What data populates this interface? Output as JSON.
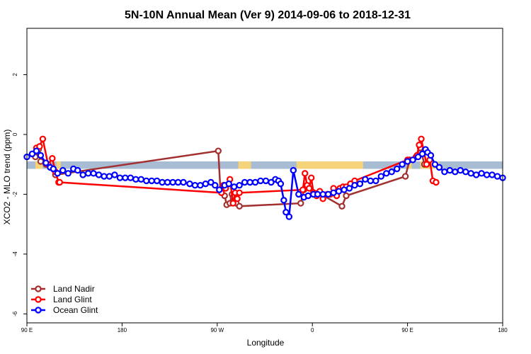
{
  "chart_data": {
    "type": "line",
    "title": "5N-10N Annual Mean (Ver 9)   2014-09-06 to 2018-12-31",
    "xlabel": "Longitude",
    "ylabel": "XCO2 - MLO trend (ppm)",
    "x_ticks": [
      {
        "value": -90,
        "label": "90 E"
      },
      {
        "value": 0,
        "label": "180"
      },
      {
        "value": 90,
        "label": "90 W"
      },
      {
        "value": 180,
        "label": "0"
      },
      {
        "value": 270,
        "label": "90 E"
      },
      {
        "value": 360,
        "label": "180"
      }
    ],
    "y_ticks": [
      {
        "value": 2,
        "label": "2"
      },
      {
        "value": 0,
        "label": "0"
      },
      {
        "value": -2,
        "label": "-2"
      },
      {
        "value": -4,
        "label": "-4"
      },
      {
        "value": -6,
        "label": "-6"
      }
    ],
    "xlim": [
      -90,
      360
    ],
    "ylim": [
      -6.3,
      3.55
    ],
    "grid": false,
    "legend_position": "bottom-left",
    "land_mask_band": {
      "ymin": -1.15,
      "ymax": -0.9,
      "ocean_color": "#a8bcd4",
      "land_color": "#f5d37a",
      "land_segments": [
        [
          -82,
          -75
        ],
        [
          -62,
          -58
        ],
        [
          110,
          122
        ],
        [
          165,
          228
        ],
        [
          270,
          274
        ],
        [
          282,
          300
        ]
      ]
    },
    "series": [
      {
        "name": "Land Nadir",
        "color": "#a23030",
        "x": [
          -82,
          -79,
          -77,
          -72,
          -63,
          91,
          93,
          95,
          97,
          99,
          102,
          104,
          105,
          108,
          111,
          169,
          172,
          176,
          208,
          212,
          268,
          272,
          278,
          282,
          286
        ],
        "y": [
          -0.75,
          -0.5,
          -0.9,
          -1.0,
          -1.35,
          -0.55,
          -1.85,
          -1.75,
          -2.05,
          -2.35,
          -2.3,
          -2.0,
          -2.1,
          -2.3,
          -2.4,
          -2.3,
          -1.85,
          -1.75,
          -2.4,
          -2.05,
          -1.4,
          -0.85,
          -0.75,
          -0.45,
          -1.0
        ]
      },
      {
        "name": "Land Glint",
        "color": "#ff0000",
        "x": [
          -81,
          -78,
          -75,
          -70,
          -66,
          -63,
          -60,
          -59,
          94,
          96,
          98,
          102,
          105,
          107,
          109,
          111,
          171,
          173,
          175,
          177,
          179,
          181,
          184,
          187,
          190,
          194,
          197,
          200,
          203,
          206,
          209,
          212,
          216,
          220,
          270,
          279,
          281,
          283,
          288,
          291,
          294,
          297
        ],
        "y": [
          -0.45,
          -0.4,
          -0.15,
          -1.0,
          -0.8,
          -1.25,
          -1.6,
          -1.6,
          -1.95,
          -1.7,
          -1.8,
          -1.5,
          -2.3,
          -1.95,
          -2.15,
          -1.95,
          -1.85,
          -1.3,
          -1.7,
          -1.8,
          -1.45,
          -1.95,
          -2.05,
          -1.9,
          -2.15,
          -2.0,
          -2.0,
          -1.8,
          -2.05,
          -1.8,
          -1.75,
          -1.75,
          -1.65,
          -1.55,
          -0.85,
          -0.7,
          -0.35,
          -0.15,
          -1.0,
          -0.85,
          -1.55,
          -1.6
        ]
      },
      {
        "name": "Ocean Glint",
        "color": "#0000ff",
        "x": [
          -90,
          -85,
          -81,
          -77,
          -72,
          -68,
          -65,
          -61,
          -56,
          -51,
          -46,
          -42,
          -37,
          -32,
          -27,
          -22,
          -17,
          -12,
          -7,
          -2,
          3,
          8,
          13,
          18,
          23,
          28,
          33,
          38,
          43,
          48,
          53,
          58,
          64,
          69,
          74,
          79,
          84,
          88,
          92,
          97,
          101,
          106,
          111,
          116,
          121,
          126,
          131,
          136,
          141,
          145,
          148,
          150,
          153,
          155,
          158,
          162,
          167,
          172,
          176,
          181,
          185,
          190,
          195,
          200,
          205,
          210,
          215,
          220,
          225,
          230,
          235,
          240,
          245,
          250,
          255,
          260,
          265,
          270,
          275,
          280,
          284,
          287,
          289,
          292,
          296,
          300,
          305,
          310,
          315,
          320,
          325,
          330,
          335,
          340,
          345,
          350,
          355,
          360
        ],
        "y": [
          -0.75,
          -0.65,
          -0.55,
          -0.7,
          -0.95,
          -1.1,
          -1.15,
          -1.3,
          -1.2,
          -1.3,
          -1.15,
          -1.2,
          -1.35,
          -1.3,
          -1.3,
          -1.35,
          -1.4,
          -1.4,
          -1.35,
          -1.45,
          -1.45,
          -1.45,
          -1.5,
          -1.5,
          -1.55,
          -1.55,
          -1.55,
          -1.6,
          -1.6,
          -1.6,
          -1.6,
          -1.6,
          -1.65,
          -1.7,
          -1.7,
          -1.65,
          -1.6,
          -1.7,
          -1.85,
          -1.7,
          -1.65,
          -1.75,
          -1.7,
          -1.6,
          -1.6,
          -1.6,
          -1.55,
          -1.55,
          -1.6,
          -1.5,
          -1.55,
          -1.65,
          -2.2,
          -2.6,
          -2.75,
          -1.2,
          -2.0,
          -2.1,
          -2.05,
          -2.0,
          -2.0,
          -2.0,
          -2.0,
          -1.95,
          -1.9,
          -1.85,
          -1.8,
          -1.7,
          -1.65,
          -1.5,
          -1.55,
          -1.55,
          -1.4,
          -1.3,
          -1.25,
          -1.15,
          -1.0,
          -0.9,
          -0.85,
          -0.75,
          -0.65,
          -0.5,
          -0.6,
          -0.7,
          -1.0,
          -1.1,
          -1.25,
          -1.2,
          -1.25,
          -1.2,
          -1.25,
          -1.3,
          -1.35,
          -1.3,
          -1.35,
          -1.35,
          -1.4,
          -1.45
        ]
      }
    ]
  }
}
